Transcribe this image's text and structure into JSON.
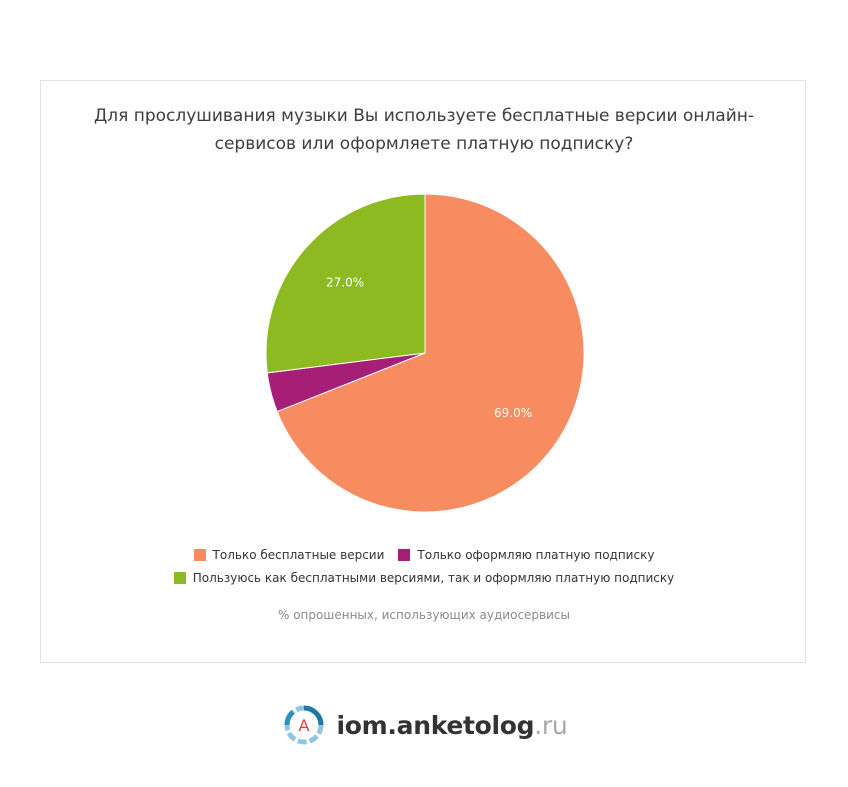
{
  "chart_data": {
    "type": "pie",
    "title": "Для прослушивания музыки Вы используете бесплатные версии онлайн-сервисов или оформляете платную подписку?",
    "title_lines": [
      "Для прослушивания музыки Вы используете бесплатные версии онлайн-",
      "сервисов или оформляете платную подписку?"
    ],
    "slices": [
      {
        "label": "Только бесплатные версии",
        "value": 69.0,
        "display": "69.0%",
        "color": "#f68c5f"
      },
      {
        "label": "Только оформляю платную подписку",
        "value": 4.0,
        "display": "",
        "color": "#a71e77"
      },
      {
        "label": "Пользуюсь как бесплатными версиями, так и оформляю платную подписку",
        "value": 27.0,
        "display": "27.0%",
        "color": "#8db921"
      }
    ],
    "unit": "%",
    "legend_position": "bottom",
    "note": "% опрошенных, использующих аудиосервисы"
  },
  "branding": {
    "logo_letter": "A",
    "name": "iom.anketolog",
    "tld": ".ru",
    "colors": {
      "ring": "#2d8fbe",
      "letter": "#e8403b"
    }
  }
}
